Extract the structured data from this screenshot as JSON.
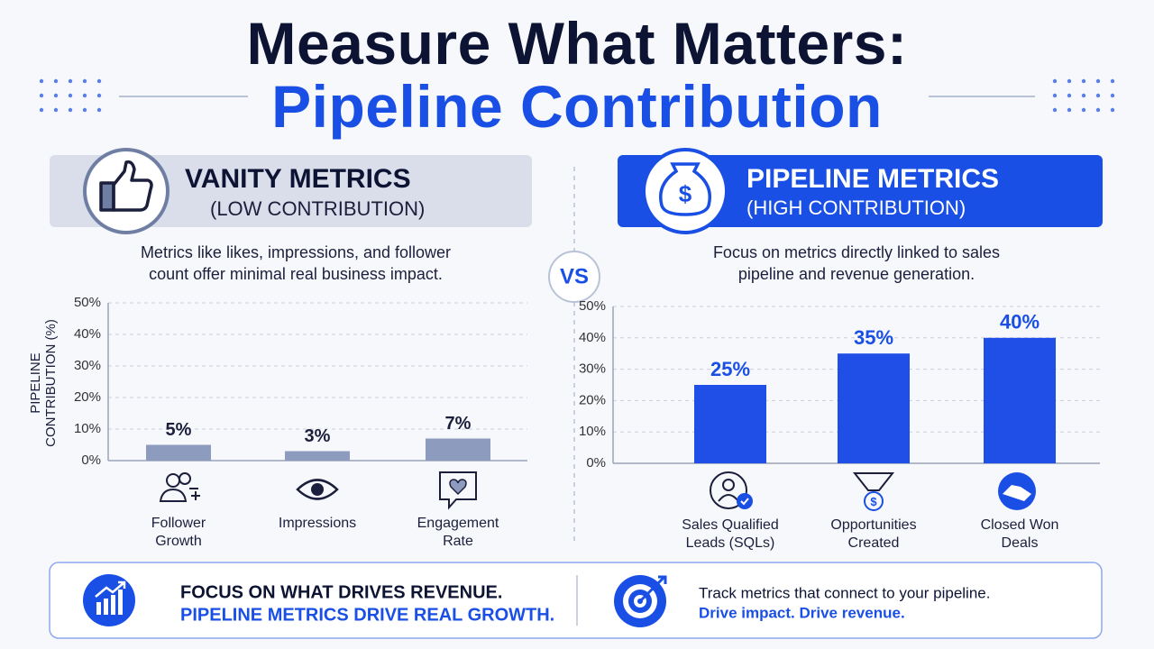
{
  "header": {
    "title_line1": "Measure What Matters:",
    "title_line2": "Pipeline Contribution"
  },
  "vs": "VS",
  "chart_data": [
    {
      "type": "bar",
      "heading": "VANITY METRICS",
      "subheading": "(LOW CONTRIBUTION)",
      "description": "Metrics like likes, impressions, and follower count offer minimal real business impact.",
      "y_label": "PIPELINE CONTRIBUTION (%)",
      "categories": [
        "Follower Growth",
        "Impressions",
        "Engagement Rate"
      ],
      "values": [
        5,
        3,
        7
      ],
      "value_labels": [
        "5%",
        "3%",
        "7%"
      ],
      "color": "#8d9bbf",
      "ylim": [
        0,
        50
      ],
      "yticks": [
        {
          "value": 0,
          "label": "0%"
        },
        {
          "value": 10,
          "label": "10%"
        },
        {
          "value": 20,
          "label": "20%"
        },
        {
          "value": 30,
          "label": "30%"
        },
        {
          "value": 40,
          "label": "40%"
        },
        {
          "value": 50,
          "label": "50%"
        }
      ],
      "grid": true
    },
    {
      "type": "bar",
      "heading": "PIPELINE METRICS",
      "subheading": "(HIGH CONTRIBUTION)",
      "description": "Focus on metrics directly linked to sales pipeline and revenue generation.",
      "categories": [
        "Sales Qualified Leads (SQLs)",
        "Opportunities Created",
        "Closed Won Deals"
      ],
      "values": [
        25,
        35,
        40
      ],
      "value_labels": [
        "25%",
        "35%",
        "40%"
      ],
      "color": "#1f4fe6",
      "ylim": [
        0,
        50
      ],
      "yticks": [
        {
          "value": 0,
          "label": "0%"
        },
        {
          "value": 10,
          "label": "10%"
        },
        {
          "value": 20,
          "label": "20%"
        },
        {
          "value": 30,
          "label": "30%"
        },
        {
          "value": 40,
          "label": "40%"
        },
        {
          "value": 50,
          "label": "50%"
        }
      ],
      "grid": true
    }
  ],
  "footer": {
    "left_line1": "FOCUS ON WHAT DRIVES REVENUE.",
    "left_line2": "PIPELINE METRICS DRIVE REAL GROWTH.",
    "right_line1": "Track metrics that connect to your pipeline.",
    "right_line2": "Drive impact. Drive revenue."
  }
}
